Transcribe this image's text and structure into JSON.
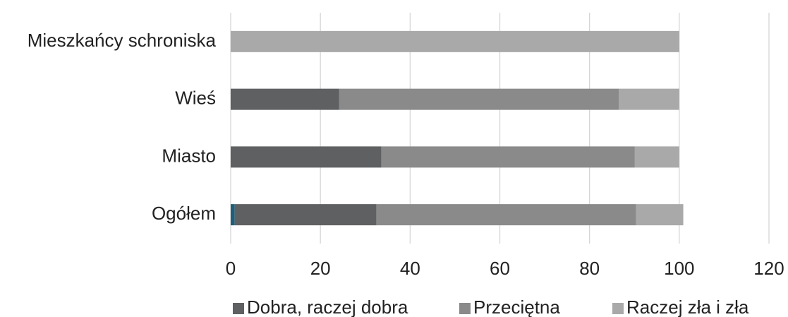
{
  "chart_data": {
    "type": "stacked_barh",
    "categories": [
      "Mieszkańcy schroniska",
      "Wieś",
      "Miasto",
      "Ogółem"
    ],
    "series": [
      {
        "color": "#1f5f7a",
        "values": [
          0,
          0,
          0,
          0.9
        ]
      },
      {
        "name": "Dobra, raczej dobra",
        "color": "#5f6062",
        "values": [
          0,
          24.2,
          33.6,
          31.6
        ]
      },
      {
        "name": "Przeciętna",
        "color": "#8a8a8a",
        "values": [
          0,
          62.3,
          56.5,
          57.9
        ]
      },
      {
        "name": "Raczej zła i zła",
        "color": "#a9a9a9",
        "values": [
          100,
          13.5,
          9.9,
          10.5
        ]
      }
    ],
    "xlim": [
      0,
      120
    ],
    "xticks": [
      0,
      20,
      40,
      60,
      80,
      100,
      120
    ],
    "grid": true
  }
}
